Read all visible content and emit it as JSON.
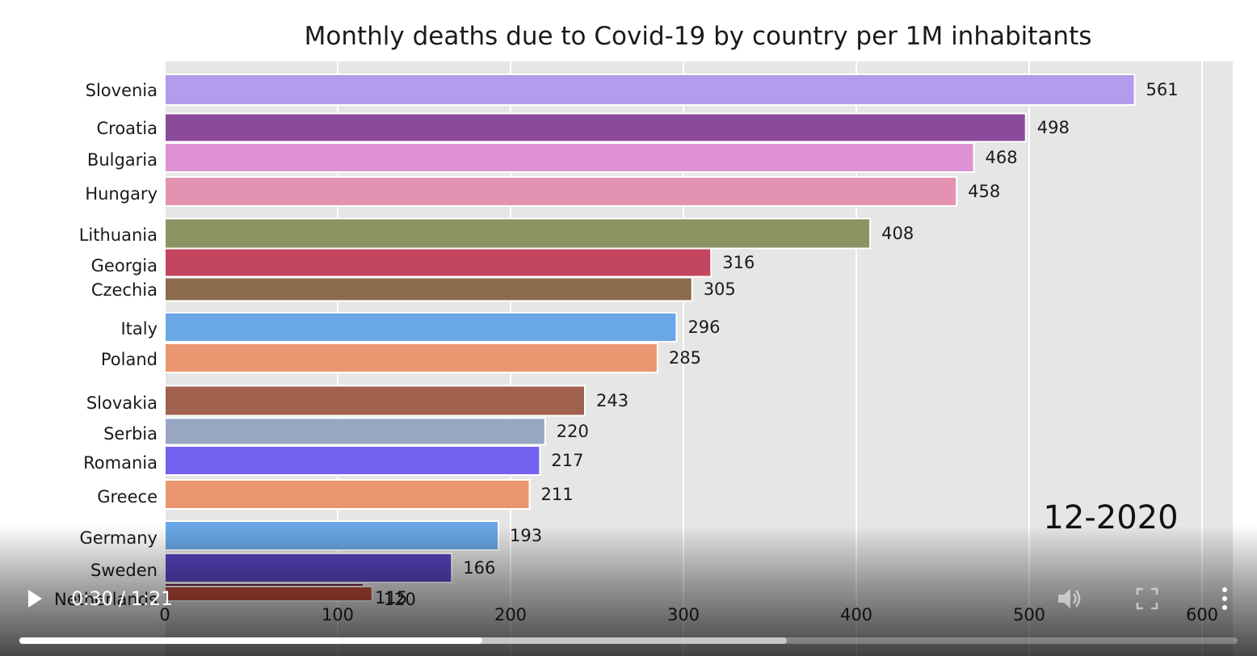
{
  "chart_data": {
    "type": "bar",
    "orientation": "horizontal",
    "title": "Monthly deaths due to Covid-19 by country per 1M inhabitants",
    "period_label": "12-2020",
    "xlim": [
      0,
      620
    ],
    "x_ticks": [
      0,
      100,
      200,
      300,
      400,
      500,
      600
    ],
    "grid": true,
    "bars": [
      {
        "category": "Slovenia",
        "value": 561,
        "color": "#b39ceb"
      },
      {
        "category": "Croatia",
        "value": 498,
        "color": "#8c4a9c"
      },
      {
        "category": "Bulgaria",
        "value": 468,
        "color": "#de92d3"
      },
      {
        "category": "Hungary",
        "value": 458,
        "color": "#e393b1"
      },
      {
        "category": "Lithuania",
        "value": 408,
        "color": "#8b9462"
      },
      {
        "category": "Georgia",
        "value": 316,
        "color": "#c4455f"
      },
      {
        "category": "Czechia",
        "value": 305,
        "color": "#8c6b4c"
      },
      {
        "category": "Italy",
        "value": 296,
        "color": "#69a7e6"
      },
      {
        "category": "Poland",
        "value": 285,
        "color": "#ea9670"
      },
      {
        "category": "Slovakia",
        "value": 243,
        "color": "#a0614e"
      },
      {
        "category": "Serbia",
        "value": 220,
        "color": "#97a7c3"
      },
      {
        "category": "Romania",
        "value": 217,
        "color": "#7461f0"
      },
      {
        "category": "Greece",
        "value": 211,
        "color": "#ea9670"
      },
      {
        "category": "Germany",
        "value": 193,
        "color": "#69a7e6"
      },
      {
        "category": "Sweden",
        "value": 166,
        "color": "#5c44c4"
      },
      {
        "category": "Netherlands",
        "value": 115,
        "color": "#6b1f47"
      },
      {
        "category": "",
        "value": 120,
        "color": "#c64e3c"
      }
    ]
  },
  "player": {
    "time_display": "0:30 / 1:21",
    "played_fraction": 0.38,
    "buffered_fraction": 0.63,
    "icons": {
      "play": "play-icon",
      "volume": "volume-icon",
      "fullscreen": "fullscreen-icon",
      "more": "more-options-icon"
    }
  }
}
